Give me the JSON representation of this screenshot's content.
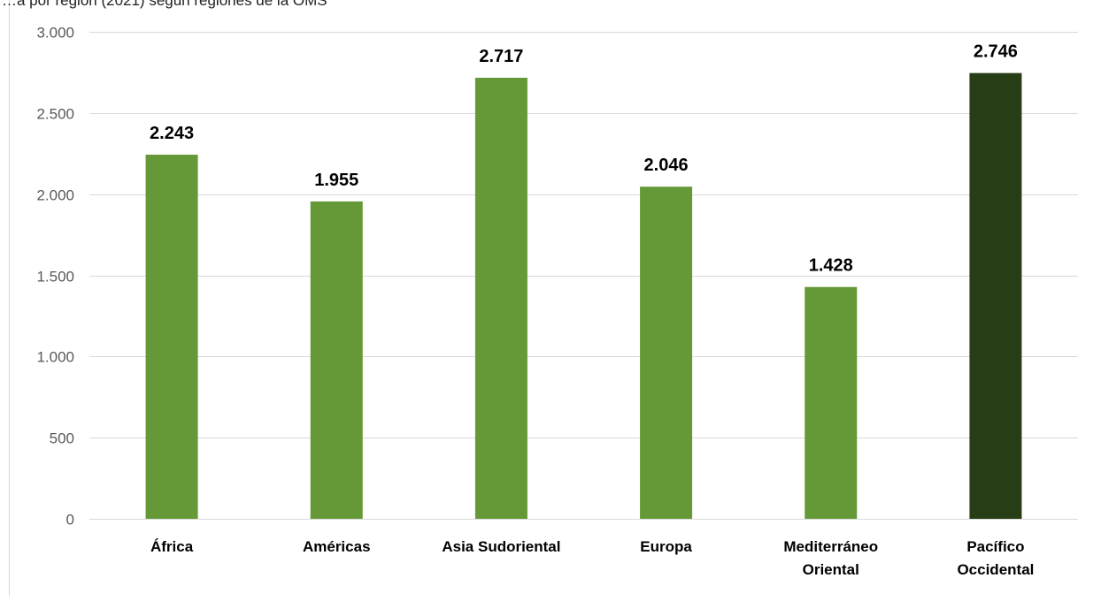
{
  "chart_data": {
    "type": "bar",
    "title": "…a por región (2021) según regiones de la OMS",
    "categories": [
      [
        "África"
      ],
      [
        "Américas"
      ],
      [
        "Asia Sudoriental"
      ],
      [
        "Europa"
      ],
      [
        "Mediterráneo",
        "Oriental"
      ],
      [
        "Pacífico",
        "Occidental"
      ]
    ],
    "values": [
      2243,
      1955,
      2717,
      2046,
      1428,
      2746
    ],
    "value_labels": [
      "2.243",
      "1.955",
      "2.717",
      "2.046",
      "1.428",
      "2.746"
    ],
    "ylim": [
      0,
      3000
    ],
    "y_ticks": [
      0,
      500,
      1000,
      1500,
      2000,
      2500,
      3000
    ],
    "y_tick_labels": [
      "0",
      "500",
      "1.000",
      "1.500",
      "2.000",
      "2.500",
      "3.000"
    ],
    "grid": true,
    "legend": "none",
    "colors": {
      "default": "#659836",
      "highlight": "#273d15",
      "grid": "#d9d9d9",
      "axis_text": "#595959",
      "label_text": "#000000",
      "frame": "#d9d9d9"
    },
    "highlight_index": 5
  }
}
